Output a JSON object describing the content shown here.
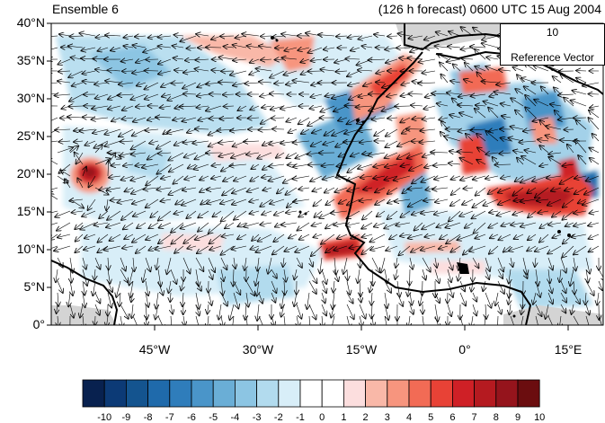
{
  "title": {
    "left": "Ensemble 6",
    "right": "(126 h forecast) 0600 UTC 15 Aug 2004"
  },
  "axes": {
    "y_labels": [
      "40°N",
      "35°N",
      "30°N",
      "25°N",
      "20°N",
      "15°N",
      "10°N",
      "5°N",
      "0°"
    ],
    "x_labels": [
      "45°W",
      "30°W",
      "15°W",
      "0°",
      "15°E"
    ],
    "lat_range": [
      0,
      40
    ],
    "lon_range": [
      -60,
      20
    ]
  },
  "reference_vector": {
    "value": "10",
    "label": "Reference Vector"
  },
  "colorbar": {
    "labels": [
      "-10",
      "-9",
      "-8",
      "-7",
      "-6",
      "-5",
      "-4",
      "-3",
      "-2",
      "-1",
      "0",
      "1",
      "2",
      "3",
      "4",
      "5",
      "6",
      "7",
      "8",
      "9",
      "10"
    ],
    "colors": [
      "#08214f",
      "#0c3a76",
      "#14548f",
      "#1f6aab",
      "#2f7dbb",
      "#4a95c9",
      "#6aaed6",
      "#8cc5e3",
      "#b2dbee",
      "#d8eef8",
      "#ffffff",
      "#ffffff",
      "#fcdede",
      "#f9b8a8",
      "#f7957e",
      "#f26b55",
      "#e84236",
      "#cf2026",
      "#b51a20",
      "#95141c",
      "#6b0d0f"
    ]
  },
  "colors": {
    "land_gray": "#d4d4d4",
    "coast": "#000000"
  }
}
